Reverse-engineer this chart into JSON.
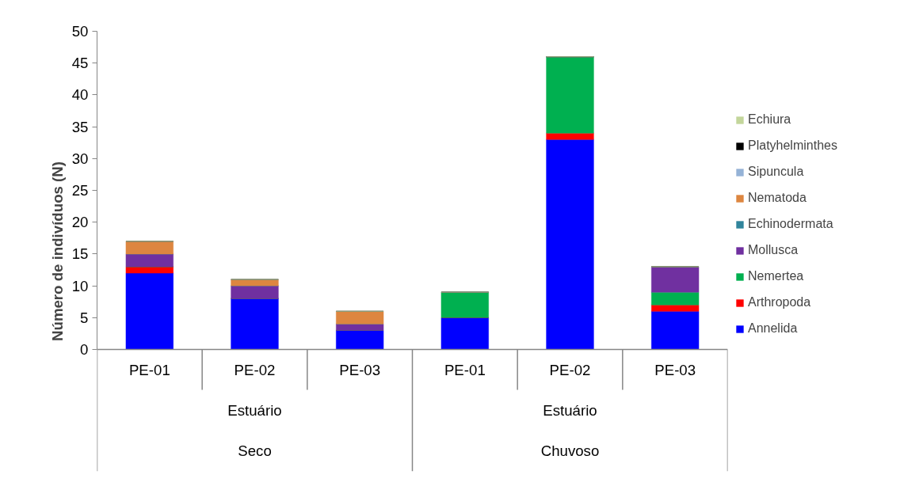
{
  "chart_data": {
    "type": "bar",
    "stacked": true,
    "ylabel": "Número de indivíduos (N)",
    "categories": [
      "PE-01",
      "PE-02",
      "PE-03",
      "PE-01",
      "PE-02",
      "PE-03"
    ],
    "annotations": [
      "Estuário",
      "Seco",
      "Estuário",
      "Chuvoso"
    ],
    "ylim": [
      0,
      50
    ],
    "yticks": [
      0,
      5,
      10,
      15,
      20,
      25,
      30,
      35,
      40,
      45,
      50
    ],
    "grid": false,
    "legend": "right",
    "series": [
      {
        "name": "Annelida",
        "color": "#0000ff",
        "values": [
          12,
          8,
          3,
          5,
          33,
          6
        ]
      },
      {
        "name": "Arthropoda",
        "color": "#ff0000",
        "values": [
          1,
          0,
          0,
          0,
          1,
          1
        ]
      },
      {
        "name": "Nemertea",
        "color": "#00b050",
        "values": [
          0,
          0,
          0,
          4,
          12,
          2
        ]
      },
      {
        "name": "Mollusca",
        "color": "#7030a0",
        "values": [
          2,
          2,
          1,
          0,
          0,
          4
        ]
      },
      {
        "name": "Echinodermata",
        "color": "#31859c",
        "values": [
          0,
          0,
          0,
          0,
          0,
          0
        ]
      },
      {
        "name": "Nematoda",
        "color": "#dd8640",
        "values": [
          2,
          1,
          2,
          0,
          0,
          0
        ]
      },
      {
        "name": "Sipuncula",
        "color": "#95b3d7",
        "values": [
          0,
          0,
          0,
          0,
          0,
          0
        ]
      },
      {
        "name": "Platyhelminthes",
        "color": "#000000",
        "values": [
          0,
          0,
          0,
          0,
          0,
          0
        ]
      },
      {
        "name": "Echiura",
        "color": "#c3d69b",
        "values": [
          0,
          0,
          0,
          0,
          0,
          0
        ]
      }
    ]
  }
}
